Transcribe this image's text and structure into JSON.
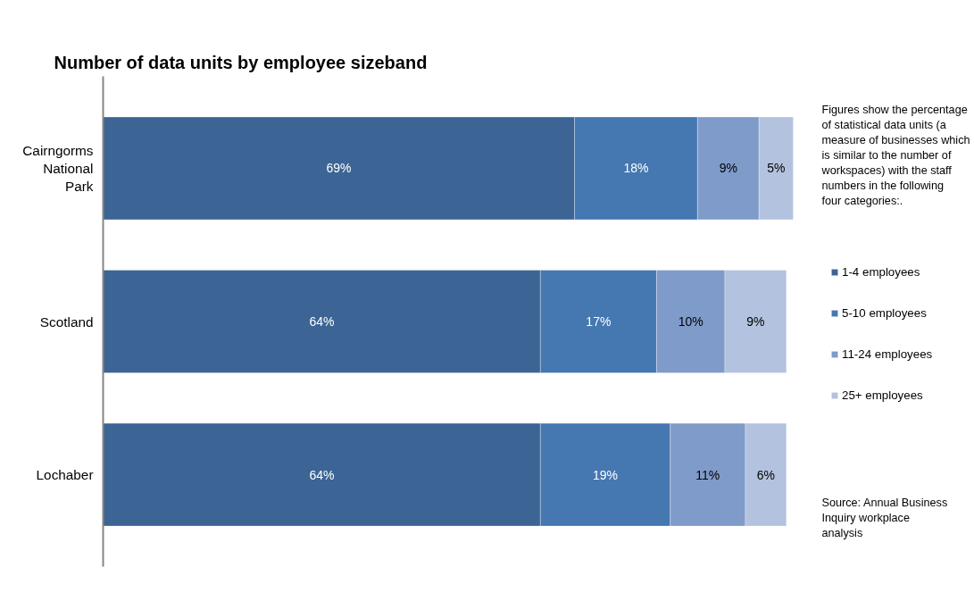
{
  "chart_data": {
    "type": "bar",
    "orientation": "horizontal",
    "stacked": true,
    "title": "Number of data units by employee sizeband",
    "categories": [
      "Cairngorms National Park",
      "Scotland",
      "Lochaber"
    ],
    "series": [
      {
        "name": "1-4 employees",
        "color": "#3c6495",
        "values": [
          69,
          64,
          64
        ],
        "value_labels": [
          "69%",
          "64%",
          "64%"
        ]
      },
      {
        "name": "5-10 employees",
        "color": "#4577b0",
        "values": [
          18,
          17,
          19
        ],
        "value_labels": [
          "18%",
          "17%",
          "19%"
        ]
      },
      {
        "name": "11-24 employees",
        "color": "#7f9bca",
        "values": [
          9,
          10,
          11
        ],
        "value_labels": [
          "9%",
          "10%",
          "11%"
        ]
      },
      {
        "name": "25+ employees",
        "color": "#b3c2de",
        "values": [
          5,
          9,
          6
        ],
        "value_labels": [
          "5%",
          "9%",
          "6%"
        ]
      }
    ],
    "tick_labels": "y",
    "grid": false,
    "legend": "right",
    "annotations": [
      "Figures show the percentage of statistical data units (a measure of businesses which is similar to the number of workspaces) with the staff numbers in the following four categories:.",
      "Source:  Annual Business Inquiry  workplace analysis"
    ]
  }
}
